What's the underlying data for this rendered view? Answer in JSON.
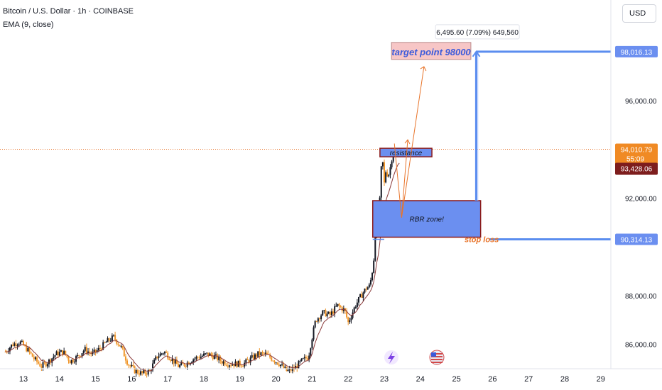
{
  "header": {
    "symbol": "Bitcoin / U.S. Dollar · 1h · COINBASE",
    "indicator": "EMA (9, close)"
  },
  "currency_button": "USD",
  "colors": {
    "up": "#131722",
    "down": "#f0962a",
    "ema": "#8a3a3a",
    "blue_line": "#5b8def",
    "blue_fill": "#6b8ff0",
    "zone_border": "#8b1a1a",
    "target_fill": "#f7c6c6",
    "target_text": "#3b5bdb",
    "orange": "#e8742a",
    "price_tag": "#f08a24",
    "ema_tag": "#7d1d1d"
  },
  "chart_data": {
    "type": "candlestick",
    "ylim": [
      85000,
      99700
    ],
    "y_ticks": [
      "86,000.00",
      "88,000.00",
      "92,000.00",
      "94,000.00",
      "96,000.00"
    ],
    "y_tick_values": [
      86000,
      88000,
      92000,
      94000,
      96000
    ],
    "x_ticks": [
      "13",
      "14",
      "15",
      "16",
      "17",
      "18",
      "19",
      "20",
      "21",
      "22",
      "23",
      "24",
      "25",
      "26",
      "27",
      "28",
      "29"
    ],
    "x_tick_days": [
      13,
      14,
      15,
      16,
      17,
      18,
      19,
      20,
      21,
      22,
      23,
      24,
      25,
      26,
      27,
      28,
      29
    ],
    "price_path": [
      [
        12.5,
        85700
      ],
      [
        12.7,
        86000
      ],
      [
        12.9,
        86100
      ],
      [
        13.1,
        85800
      ],
      [
        13.3,
        85400
      ],
      [
        13.5,
        85100
      ],
      [
        13.7,
        85300
      ],
      [
        13.9,
        85600
      ],
      [
        14.1,
        85700
      ],
      [
        14.3,
        85300
      ],
      [
        14.5,
        85500
      ],
      [
        14.7,
        85800
      ],
      [
        14.9,
        85600
      ],
      [
        15.1,
        85800
      ],
      [
        15.3,
        86100
      ],
      [
        15.5,
        86300
      ],
      [
        15.7,
        85900
      ],
      [
        15.9,
        85200
      ],
      [
        16.1,
        84900
      ],
      [
        16.3,
        84800
      ],
      [
        16.5,
        84900
      ],
      [
        16.7,
        85500
      ],
      [
        16.9,
        85700
      ],
      [
        17.1,
        85400
      ],
      [
        17.3,
        85100
      ],
      [
        17.5,
        85200
      ],
      [
        17.7,
        85400
      ],
      [
        17.9,
        85500
      ],
      [
        18.1,
        85600
      ],
      [
        18.3,
        85500
      ],
      [
        18.5,
        85300
      ],
      [
        18.7,
        85200
      ],
      [
        18.9,
        85200
      ],
      [
        19.1,
        85200
      ],
      [
        19.3,
        85400
      ],
      [
        19.5,
        85600
      ],
      [
        19.7,
        85600
      ],
      [
        19.9,
        85400
      ],
      [
        20.1,
        85200
      ],
      [
        20.3,
        84900
      ],
      [
        20.5,
        85000
      ],
      [
        20.7,
        85300
      ],
      [
        20.9,
        85500
      ],
      [
        21.0,
        86300
      ],
      [
        21.1,
        87000
      ],
      [
        21.3,
        87300
      ],
      [
        21.5,
        87200
      ],
      [
        21.7,
        87600
      ],
      [
        21.9,
        87400
      ],
      [
        22.0,
        86900
      ],
      [
        22.2,
        87600
      ],
      [
        22.4,
        88100
      ],
      [
        22.5,
        88300
      ],
      [
        22.6,
        88400
      ],
      [
        22.7,
        89300
      ],
      [
        22.75,
        90500
      ],
      [
        22.8,
        91000
      ],
      [
        22.85,
        90800
      ],
      [
        22.9,
        93000
      ],
      [
        22.95,
        93600
      ],
      [
        23.0,
        92600
      ],
      [
        23.05,
        93200
      ],
      [
        23.1,
        92900
      ],
      [
        23.15,
        93100
      ],
      [
        23.2,
        93600
      ],
      [
        23.25,
        93800
      ],
      [
        23.3,
        93700
      ],
      [
        23.35,
        93900
      ],
      [
        23.4,
        93900
      ]
    ],
    "ema_series": "EMA (9, close)",
    "annotations": {
      "target_label": "target point 98000",
      "resistance_label": "resistance",
      "rbr_label": "RBR zone!",
      "stop_loss_label": "stop loss",
      "measure_label": "6,495.60 (7.09%) 649,560",
      "target_price": 98016.13,
      "stop_price": 90314.13,
      "rbr_zone": [
        90400,
        91900
      ],
      "resistance_zone": [
        93700,
        94050
      ],
      "current_price": 94010.79
    },
    "price_tags": {
      "target": "98,016.13",
      "current": "94,010.79",
      "countdown": "55:09",
      "ema": "93,428.06",
      "stop": "90,314.13"
    }
  }
}
